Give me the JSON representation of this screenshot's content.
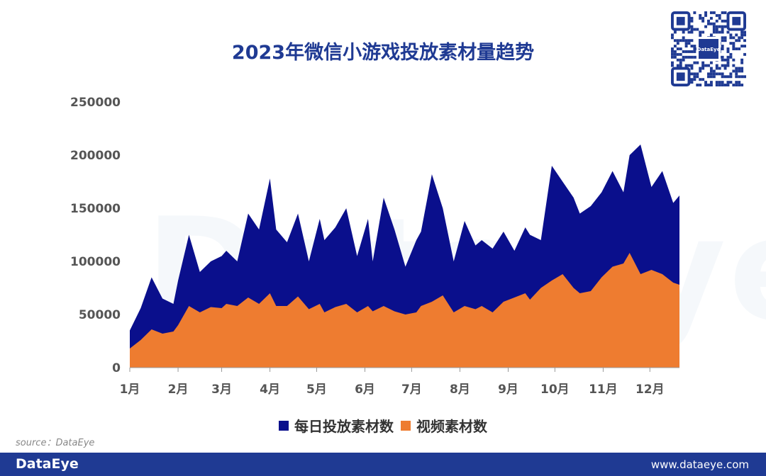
{
  "colors": {
    "total": "#0a0f8c",
    "video": "#ee7c30",
    "accent": "#1f3a93"
  },
  "icons": {
    "qr": "qr-code-icon"
  },
  "watermark": "DataEye",
  "source": "source：DataEye",
  "footer": {
    "brand": "DataEye",
    "url": "www.dataeye.com"
  },
  "chart_data": {
    "type": "area",
    "title": "2023年微信小游戏投放素材量趋势",
    "xlabel": "",
    "ylabel": "",
    "ylim": [
      0,
      250000
    ],
    "yticks": [
      "250000",
      "200000",
      "150000",
      "100000",
      "50000",
      "0"
    ],
    "categories": [
      "1月",
      "2月",
      "3月",
      "4月",
      "5月",
      "6月",
      "7月",
      "8月",
      "9月",
      "10月",
      "11月",
      "12月"
    ],
    "legend_position": "bottom",
    "grid": false,
    "series": [
      {
        "name": "每日投放素材数",
        "color_key": "total",
        "x": [
          1,
          8,
          15,
          22,
          29,
          32,
          39,
          46,
          53,
          60,
          63,
          70,
          77,
          84,
          91,
          95,
          102,
          109,
          116,
          123,
          126,
          133,
          140,
          147,
          154,
          157,
          164,
          171,
          178,
          185,
          188,
          195,
          202,
          209,
          216,
          223,
          227,
          234,
          241,
          248,
          255,
          258,
          265,
          272,
          279,
          286,
          290,
          297,
          304,
          311,
          318,
          322,
          329,
          336,
          343,
          350,
          354
        ],
        "values": [
          35000,
          56000,
          85000,
          65000,
          60000,
          82000,
          125000,
          90000,
          100000,
          105000,
          110000,
          100000,
          145000,
          130000,
          178000,
          130000,
          118000,
          145000,
          100000,
          140000,
          120000,
          132000,
          150000,
          105000,
          140000,
          100000,
          160000,
          130000,
          95000,
          120000,
          128000,
          182000,
          150000,
          100000,
          138000,
          115000,
          120000,
          112000,
          128000,
          110000,
          132000,
          125000,
          120000,
          190000,
          175000,
          160000,
          145000,
          152000,
          165000,
          185000,
          165000,
          200000,
          210000,
          170000,
          185000,
          155000,
          162000
        ]
      },
      {
        "name": "视频素材数",
        "color_key": "video",
        "x": [
          1,
          8,
          15,
          22,
          29,
          32,
          39,
          46,
          53,
          60,
          63,
          70,
          77,
          84,
          91,
          95,
          102,
          109,
          116,
          123,
          126,
          133,
          140,
          147,
          154,
          157,
          164,
          171,
          178,
          185,
          188,
          195,
          202,
          209,
          216,
          223,
          227,
          234,
          241,
          248,
          255,
          258,
          265,
          272,
          279,
          286,
          290,
          297,
          304,
          311,
          318,
          322,
          329,
          336,
          343,
          350,
          354
        ],
        "values": [
          18000,
          26000,
          36000,
          32000,
          34000,
          40000,
          58000,
          52000,
          57000,
          56000,
          60000,
          58000,
          66000,
          60000,
          70000,
          58000,
          58000,
          67000,
          55000,
          60000,
          52000,
          57000,
          60000,
          52000,
          58000,
          53000,
          58000,
          53000,
          50000,
          52000,
          58000,
          62000,
          68000,
          52000,
          58000,
          55000,
          58000,
          52000,
          62000,
          66000,
          70000,
          64000,
          75000,
          82000,
          88000,
          75000,
          70000,
          72000,
          85000,
          95000,
          98000,
          108000,
          88000,
          92000,
          88000,
          80000,
          78000
        ]
      }
    ]
  }
}
